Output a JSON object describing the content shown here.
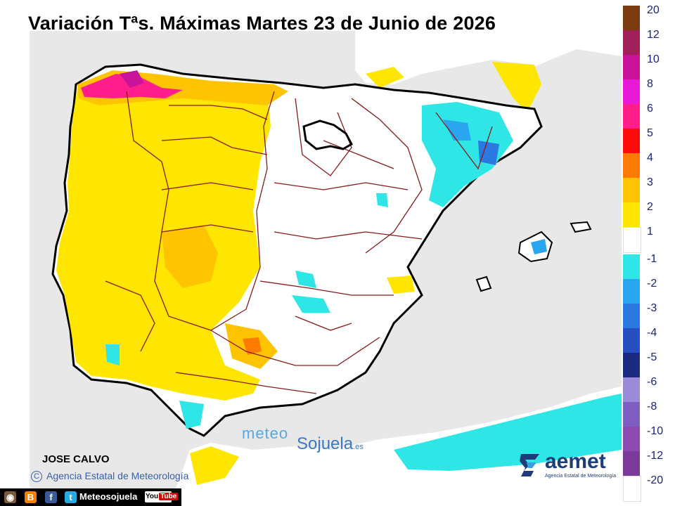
{
  "title": "Variación Tªs. Máximas Martes 23 de Junio de 2026",
  "author": "JOSE CALVO",
  "agency": {
    "copyright_symbol": "C",
    "name": "Agencia Estatal de Meteorología"
  },
  "watermark": {
    "part1": "meteo",
    "part2": "Sojuela",
    "tld": ".es"
  },
  "aemet_logo": {
    "word": "aemet",
    "subtitle": "Agencia Estatal de Meteorología"
  },
  "social_bar": {
    "icons": [
      "instagram-icon",
      "blogger-icon",
      "facebook-icon",
      "twitter-icon"
    ],
    "icon_glyphs": [
      "◉",
      "B",
      "f",
      "t"
    ],
    "handle": "Meteosojuela",
    "youtube_prefix": "You",
    "youtube_suffix": "Tube"
  },
  "legend": {
    "warm": [
      {
        "label": "20",
        "color": "#7b3a10"
      },
      {
        "label": "12",
        "color": "#a0205a"
      },
      {
        "label": "10",
        "color": "#c8129a"
      },
      {
        "label": "8",
        "color": "#e81ad8"
      },
      {
        "label": "6",
        "color": "#ff1e8c"
      },
      {
        "label": "5",
        "color": "#ff0a0a"
      },
      {
        "label": "4",
        "color": "#ff7a00"
      },
      {
        "label": "3",
        "color": "#ffc400"
      },
      {
        "label": "2",
        "color": "#ffe600"
      },
      {
        "label": "1",
        "color": "#ffffff"
      }
    ],
    "cold": [
      {
        "label": "-1",
        "color": "#2ee6e6"
      },
      {
        "label": "-2",
        "color": "#2aa5f0"
      },
      {
        "label": "-3",
        "color": "#2a78e0"
      },
      {
        "label": "-4",
        "color": "#2650c0"
      },
      {
        "label": "-5",
        "color": "#1a2a80"
      },
      {
        "label": "-6",
        "color": "#9a8ad8"
      },
      {
        "label": "-8",
        "color": "#7e5ec0"
      },
      {
        "label": "-10",
        "color": "#8a4ab0"
      },
      {
        "label": "-12",
        "color": "#7a3a9a"
      },
      {
        "label": "-20",
        "color": "#ffffff"
      }
    ]
  },
  "colors": {
    "sea": "#e8e8e8",
    "land": "#ffffff",
    "coast": "#000000",
    "province_border": "#8b1a1a",
    "highlight_region": "#000000"
  }
}
